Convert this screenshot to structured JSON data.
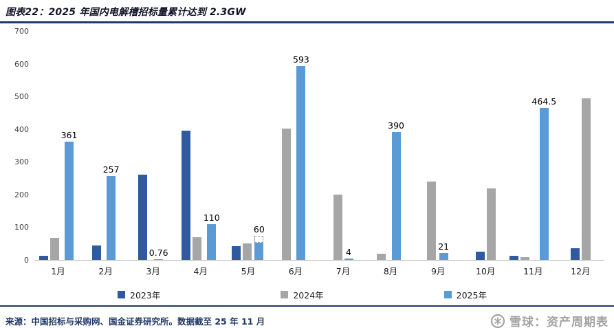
{
  "header": {
    "title": "图表22：2025 年国内电解槽招标量累计达到 2.3GW"
  },
  "footer": {
    "source": "来源：中国招标与采购网、国金证券研究所。数据截至 25 年 11 月"
  },
  "watermark": {
    "icon": "snowball-logo-icon",
    "name": "雪球：资产周期表"
  },
  "colors": {
    "rule": "#1f3864",
    "series_2023": "#2f5b9e",
    "series_2024": "#a6a6a6",
    "series_2025": "#5b9bd5",
    "footer_text": "#1f3864",
    "watermark": "#a3a3a3"
  },
  "chart_data": {
    "type": "bar",
    "title": "2025 年国内电解槽招标量累计达到 2.3GW",
    "categories": [
      "1月",
      "2月",
      "3月",
      "4月",
      "5月",
      "6月",
      "7月",
      "8月",
      "9月",
      "10月",
      "11月",
      "12月"
    ],
    "series": [
      {
        "name": "2023年",
        "color": "#2f5b9e",
        "values": [
          12,
          45,
          260,
          395,
          42,
          null,
          null,
          null,
          null,
          25,
          13,
          35
        ]
      },
      {
        "name": "2024年",
        "color": "#a6a6a6",
        "values": [
          68,
          null,
          null,
          70,
          50,
          402,
          200,
          20,
          240,
          218,
          8,
          495
        ]
      },
      {
        "name": "2025年",
        "color": "#5b9bd5",
        "values": [
          361,
          257,
          0.76,
          110,
          60,
          593,
          4,
          390,
          21,
          null,
          464.5,
          null
        ]
      }
    ],
    "data_labels": {
      "series": "2025年",
      "values": [
        "361",
        "257",
        "0.76",
        "110",
        "60",
        "593",
        "4",
        "390",
        "21",
        null,
        "464.5",
        null
      ]
    },
    "estimated_cap": {
      "category": "5月",
      "series": "2025年",
      "solid_to": 52,
      "dashed_to": 72
    },
    "xlabel": "",
    "ylabel": "",
    "ylim": [
      0,
      700
    ],
    "yticks": [
      0,
      100,
      200,
      300,
      400,
      500,
      600,
      700
    ],
    "grid": false,
    "legend_position": "bottom"
  }
}
